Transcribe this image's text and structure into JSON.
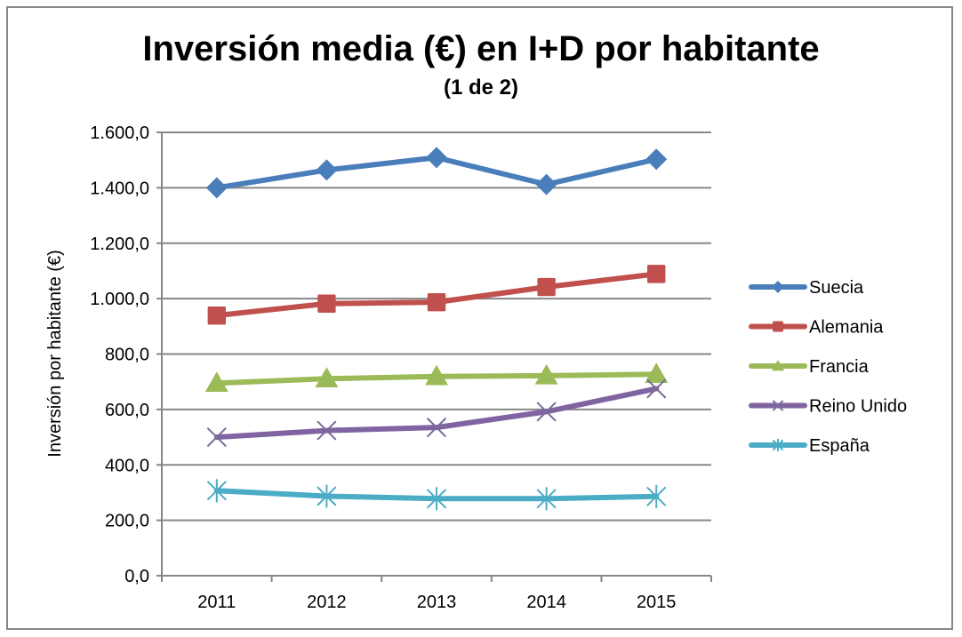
{
  "chart_data": {
    "type": "line",
    "title": "Inversión media (€) en I+D por habitante",
    "subtitle": "(1 de 2)",
    "xlabel": "",
    "ylabel": "Inversión por habitante (€)",
    "categories": [
      "2011",
      "2012",
      "2013",
      "2014",
      "2015"
    ],
    "ylim": [
      0,
      1600
    ],
    "yticks": [
      0,
      200,
      400,
      600,
      800,
      1000,
      1200,
      1400,
      1600
    ],
    "ytick_labels": [
      "0,0",
      "200,0",
      "400,0",
      "600,0",
      "800,0",
      "1.000,0",
      "1.200,0",
      "1.400,0",
      "1.600,0"
    ],
    "grid": true,
    "legend_position": "right",
    "series": [
      {
        "name": "Suecia",
        "color": "#4A7EBB",
        "marker": "diamond",
        "values": [
          1400,
          1464,
          1509,
          1412,
          1503
        ]
      },
      {
        "name": "Alemania",
        "color": "#C0504D",
        "marker": "square",
        "values": [
          939,
          982,
          987,
          1042,
          1089
        ]
      },
      {
        "name": "Francia",
        "color": "#9BBB59",
        "marker": "triangle",
        "values": [
          695,
          711,
          719,
          722,
          727
        ]
      },
      {
        "name": "Reino Unido",
        "color": "#8064A2",
        "marker": "x",
        "values": [
          500,
          524,
          535,
          592,
          675
        ]
      },
      {
        "name": "España",
        "color": "#4BACC6",
        "marker": "star",
        "values": [
          307,
          287,
          278,
          278,
          286
        ]
      }
    ]
  }
}
